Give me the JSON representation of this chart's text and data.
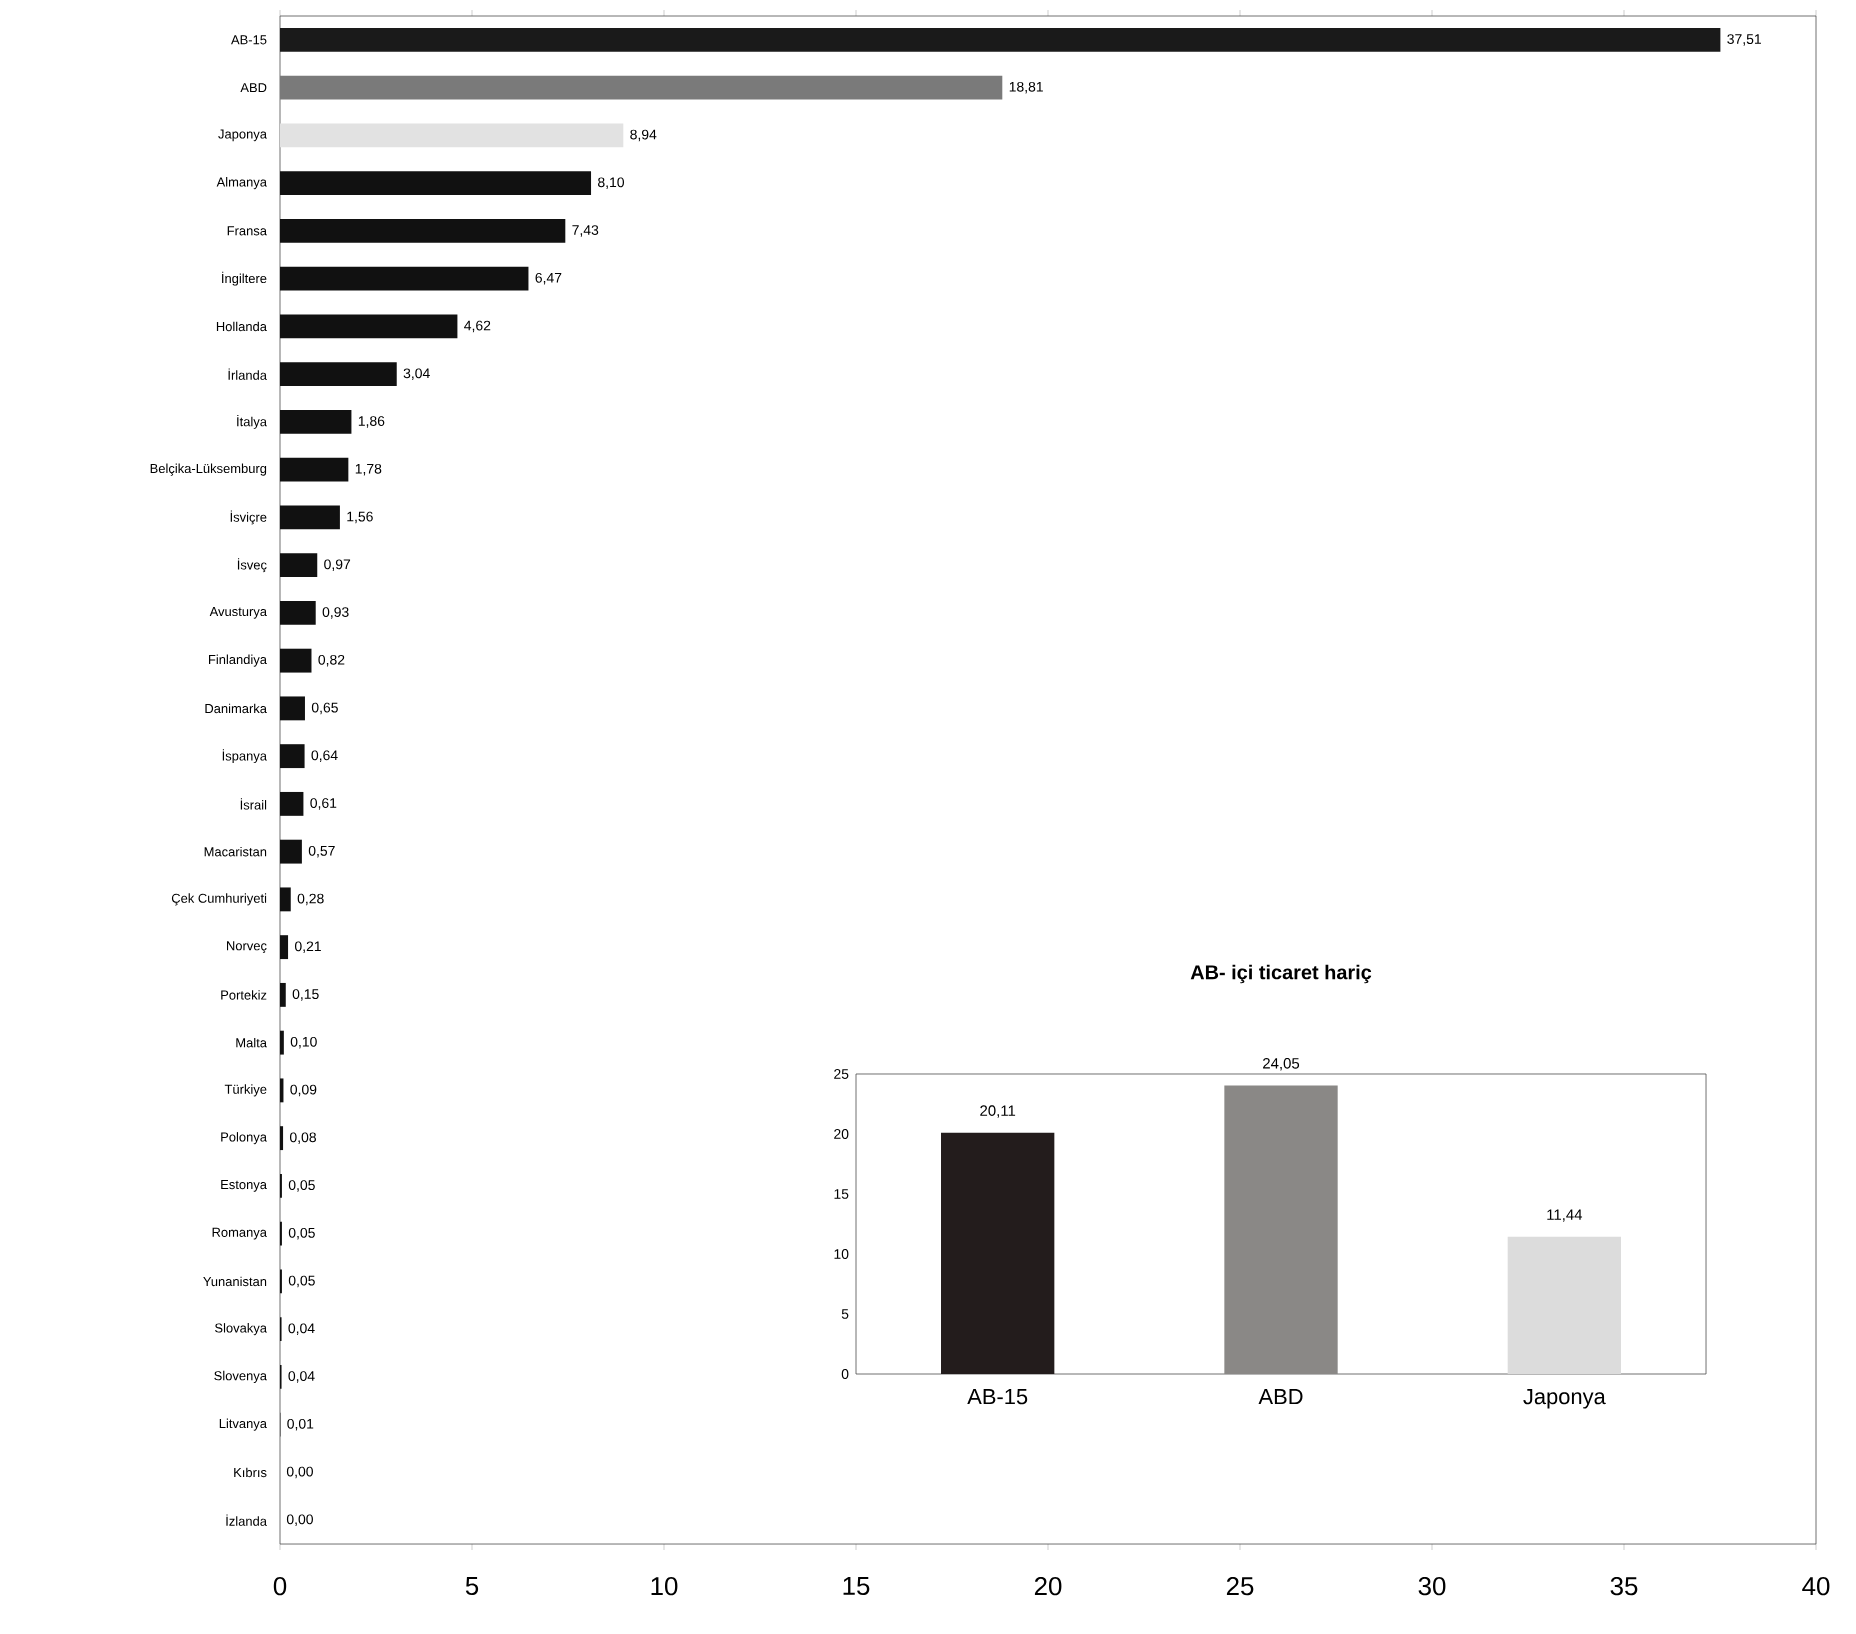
{
  "chart_data": [
    {
      "type": "bar",
      "orientation": "horizontal",
      "categories": [
        "AB-15",
        "ABD",
        "Japonya",
        "Almanya",
        "Fransa",
        "İngiltere",
        "Hollanda",
        "İrlanda",
        "İtalya",
        "Belçika-Lüksemburg",
        "İsviçre",
        "İsveç",
        "Avusturya",
        "Finlandiya",
        "Danimarka",
        "İspanya",
        "İsrail",
        "Macaristan",
        "Çek Cumhuriyeti",
        "Norveç",
        "Portekiz",
        "Malta",
        "Türkiye",
        "Polonya",
        "Estonya",
        "Romanya",
        "Yunanistan",
        "Slovakya",
        "Slovenya",
        "Litvanya",
        "Kıbrıs",
        "İzlanda"
      ],
      "values": [
        37.51,
        18.81,
        8.94,
        8.1,
        7.43,
        6.47,
        4.62,
        3.04,
        1.86,
        1.78,
        1.56,
        0.97,
        0.93,
        0.82,
        0.65,
        0.64,
        0.61,
        0.57,
        0.28,
        0.21,
        0.15,
        0.1,
        0.09,
        0.08,
        0.05,
        0.05,
        0.05,
        0.04,
        0.04,
        0.01,
        0.0,
        0.0
      ],
      "value_labels": [
        "37,51",
        "18,81",
        "8,94",
        "8,10",
        "7,43",
        "6,47",
        "4,62",
        "3,04",
        "1,86",
        "1,78",
        "1,56",
        "0,97",
        "0,93",
        "0,82",
        "0,65",
        "0,64",
        "0,61",
        "0,57",
        "0,28",
        "0,21",
        "0,15",
        "0,10",
        "0,09",
        "0,08",
        "0,05",
        "0,05",
        "0,05",
        "0,04",
        "0,04",
        "0,01",
        "0,00",
        "0,00"
      ],
      "colors": [
        "#1a1a1a",
        "#7a7a7a",
        "#e2e2e2",
        "#111111",
        "#111111",
        "#111111",
        "#111111",
        "#111111",
        "#111111",
        "#111111",
        "#111111",
        "#111111",
        "#111111",
        "#111111",
        "#111111",
        "#111111",
        "#111111",
        "#111111",
        "#111111",
        "#111111",
        "#111111",
        "#111111",
        "#111111",
        "#111111",
        "#111111",
        "#111111",
        "#111111",
        "#111111",
        "#111111",
        "#111111",
        "#111111",
        "#111111"
      ],
      "xlim": [
        0,
        40
      ],
      "xticks": [
        0,
        5,
        10,
        15,
        20,
        25,
        30,
        35,
        40
      ]
    },
    {
      "type": "bar",
      "title": "AB- içi ticaret hariç",
      "categories": [
        "AB-15",
        "ABD",
        "Japonya"
      ],
      "values": [
        20.11,
        24.05,
        11.44
      ],
      "value_labels": [
        "20,11",
        "24,05",
        "11,44"
      ],
      "colors": [
        "#231c1c",
        "#8a8886",
        "#dcdcdc"
      ],
      "ylim": [
        0,
        25
      ],
      "yticks": [
        0,
        5,
        10,
        15,
        20,
        25
      ]
    }
  ]
}
